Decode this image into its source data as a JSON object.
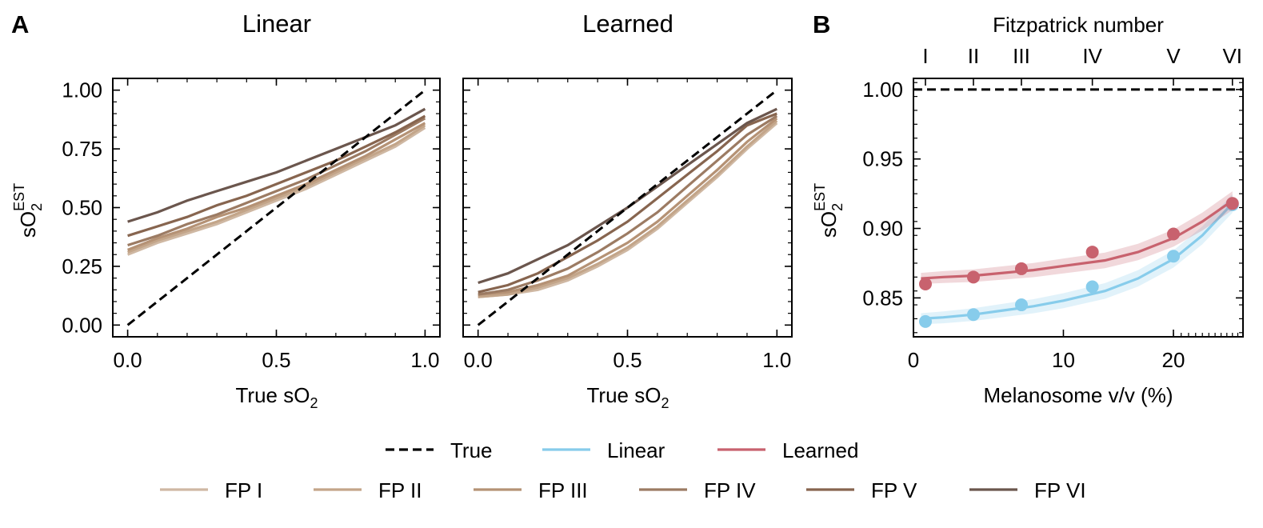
{
  "figure": {
    "panel_a_label": "A",
    "panel_b_label": "B",
    "colors": {
      "true": "#000000",
      "linear": "#87cceb",
      "learned": "#c8626e",
      "fp": [
        "#cfb8a3",
        "#c3a589",
        "#b59275",
        "#9c7b63",
        "#87654f",
        "#6b564d"
      ]
    }
  },
  "chart_data": [
    {
      "type": "line",
      "title": "Linear",
      "xlabel": "True sO2",
      "ylabel": "sO2 EST",
      "xlim": [
        -0.05,
        1.05
      ],
      "ylim": [
        -0.05,
        1.05
      ],
      "xticks": [
        0.0,
        0.5,
        1.0
      ],
      "xtick_labels": [
        "0.0",
        "0.5",
        "1.0"
      ],
      "yticks": [
        0.0,
        0.25,
        0.5,
        0.75,
        1.0
      ],
      "ytick_labels": [
        "0.00",
        "0.25",
        "0.50",
        "0.75",
        "1.00"
      ],
      "true_line": [
        [
          0,
          0
        ],
        [
          1,
          1
        ]
      ],
      "x": [
        0.0,
        0.1,
        0.2,
        0.3,
        0.4,
        0.5,
        0.6,
        0.7,
        0.8,
        0.9,
        1.0
      ],
      "series": [
        {
          "name": "FP I",
          "values": [
            0.3,
            0.35,
            0.39,
            0.43,
            0.48,
            0.53,
            0.58,
            0.64,
            0.7,
            0.76,
            0.84
          ]
        },
        {
          "name": "FP II",
          "values": [
            0.31,
            0.36,
            0.4,
            0.44,
            0.49,
            0.54,
            0.59,
            0.65,
            0.71,
            0.77,
            0.85
          ]
        },
        {
          "name": "FP III",
          "values": [
            0.32,
            0.37,
            0.41,
            0.46,
            0.5,
            0.55,
            0.6,
            0.66,
            0.72,
            0.79,
            0.86
          ]
        },
        {
          "name": "FP IV",
          "values": [
            0.34,
            0.38,
            0.43,
            0.47,
            0.52,
            0.57,
            0.62,
            0.68,
            0.74,
            0.81,
            0.88
          ]
        },
        {
          "name": "FP V",
          "values": [
            0.38,
            0.42,
            0.46,
            0.51,
            0.55,
            0.6,
            0.65,
            0.7,
            0.76,
            0.82,
            0.89
          ]
        },
        {
          "name": "FP VI",
          "values": [
            0.44,
            0.48,
            0.53,
            0.57,
            0.61,
            0.65,
            0.7,
            0.75,
            0.8,
            0.85,
            0.92
          ]
        }
      ]
    },
    {
      "type": "line",
      "title": "Learned",
      "xlabel": "True sO2",
      "ylabel": "",
      "xlim": [
        -0.05,
        1.05
      ],
      "ylim": [
        -0.05,
        1.05
      ],
      "xticks": [
        0.0,
        0.5,
        1.0
      ],
      "xtick_labels": [
        "0.0",
        "0.5",
        "1.0"
      ],
      "true_line": [
        [
          0,
          0
        ],
        [
          1,
          1
        ]
      ],
      "x": [
        0.0,
        0.1,
        0.2,
        0.3,
        0.4,
        0.5,
        0.6,
        0.7,
        0.8,
        0.9,
        1.0
      ],
      "series": [
        {
          "name": "FP I",
          "values": [
            0.12,
            0.13,
            0.15,
            0.19,
            0.25,
            0.32,
            0.41,
            0.52,
            0.63,
            0.75,
            0.86
          ]
        },
        {
          "name": "FP II",
          "values": [
            0.12,
            0.13,
            0.16,
            0.2,
            0.26,
            0.33,
            0.42,
            0.53,
            0.64,
            0.76,
            0.87
          ]
        },
        {
          "name": "FP III",
          "values": [
            0.13,
            0.14,
            0.17,
            0.21,
            0.28,
            0.35,
            0.44,
            0.55,
            0.66,
            0.78,
            0.88
          ]
        },
        {
          "name": "FP IV",
          "values": [
            0.13,
            0.15,
            0.19,
            0.24,
            0.31,
            0.39,
            0.48,
            0.59,
            0.7,
            0.81,
            0.89
          ]
        },
        {
          "name": "FP V",
          "values": [
            0.14,
            0.17,
            0.22,
            0.29,
            0.36,
            0.44,
            0.54,
            0.64,
            0.74,
            0.85,
            0.9
          ]
        },
        {
          "name": "FP VI",
          "values": [
            0.18,
            0.22,
            0.28,
            0.34,
            0.42,
            0.5,
            0.59,
            0.68,
            0.77,
            0.86,
            0.92
          ]
        }
      ]
    },
    {
      "type": "scatter",
      "title": "",
      "top_axis_label": "Fitzpatrick number",
      "top_ticks": [
        0.8,
        4.0,
        7.2,
        12.0,
        20.0,
        29.0
      ],
      "top_tick_labels": [
        "I",
        "II",
        "III",
        "IV",
        "V",
        "VI"
      ],
      "xlabel": "Melanosome v/v (%)",
      "ylabel": "sO2 EST",
      "x_scale": "symlog",
      "xlim": [
        0,
        31
      ],
      "ylim": [
        0.822,
        1.008
      ],
      "xticks": [
        0,
        10,
        20
      ],
      "xtick_labels": [
        "0",
        "10",
        "20"
      ],
      "yticks": [
        0.85,
        0.9,
        0.95,
        1.0
      ],
      "ytick_labels": [
        "0.85",
        "0.90",
        "0.95",
        "1.00"
      ],
      "true_value": 1.0,
      "series": [
        {
          "name": "Linear",
          "x": [
            0.8,
            4.0,
            7.2,
            12.0,
            20.0,
            29.0
          ],
          "y": [
            0.833,
            0.838,
            0.845,
            0.858,
            0.88,
            0.917
          ],
          "fit_x": [
            0.5,
            2,
            4,
            6,
            8,
            10,
            13,
            16,
            20,
            24,
            29
          ],
          "fit_y": [
            0.835,
            0.836,
            0.838,
            0.841,
            0.844,
            0.848,
            0.855,
            0.864,
            0.878,
            0.895,
            0.918
          ]
        },
        {
          "name": "Learned",
          "x": [
            0.8,
            4.0,
            7.2,
            12.0,
            20.0,
            29.0
          ],
          "y": [
            0.86,
            0.865,
            0.871,
            0.883,
            0.896,
            0.918
          ],
          "fit_x": [
            0.5,
            2,
            4,
            6,
            8,
            10,
            13,
            16,
            20,
            24,
            29
          ],
          "fit_y": [
            0.864,
            0.865,
            0.866,
            0.868,
            0.87,
            0.873,
            0.877,
            0.883,
            0.893,
            0.905,
            0.92
          ]
        }
      ]
    }
  ],
  "legend": {
    "row1": [
      {
        "label": "True",
        "style": "dashed",
        "color": "#000000"
      },
      {
        "label": "Linear",
        "style": "solid",
        "color": "#87cceb"
      },
      {
        "label": "Learned",
        "style": "solid",
        "color": "#c8626e"
      }
    ],
    "row2": [
      {
        "label": "FP I",
        "color": "#cfb8a3"
      },
      {
        "label": "FP II",
        "color": "#c3a589"
      },
      {
        "label": "FP III",
        "color": "#b59275"
      },
      {
        "label": "FP IV",
        "color": "#9c7b63"
      },
      {
        "label": "FP V",
        "color": "#87654f"
      },
      {
        "label": "FP VI",
        "color": "#6b564d"
      }
    ]
  }
}
